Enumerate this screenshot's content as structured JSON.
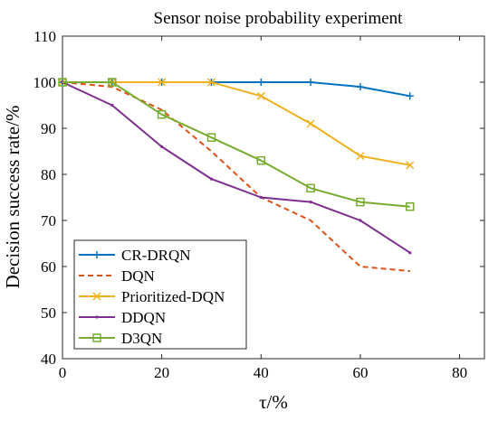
{
  "chart_data": {
    "type": "line",
    "title": "Sensor noise probability experiment",
    "xlabel": "τ/%",
    "ylabel": "Decision success rate/%",
    "xlim": [
      0,
      85
    ],
    "ylim": [
      40,
      110
    ],
    "xticks": [
      0,
      20,
      40,
      60,
      80
    ],
    "yticks": [
      40,
      50,
      60,
      70,
      80,
      90,
      100,
      110
    ],
    "grid": false,
    "legend_position": "bottom-left",
    "x": [
      0,
      10,
      20,
      30,
      40,
      50,
      60,
      70
    ],
    "series": [
      {
        "name": "CR-DRQN",
        "color": "#0072BD",
        "line": "solid",
        "marker": "plus",
        "values": [
          100,
          100,
          100,
          100,
          100,
          100,
          99,
          97
        ]
      },
      {
        "name": "DQN",
        "color": "#D95319",
        "line": "dashed",
        "marker": "none",
        "values": [
          100,
          99,
          94,
          85,
          75,
          70,
          60,
          59
        ]
      },
      {
        "name": "Prioritized-DQN",
        "color": "#EDB120",
        "line": "solid",
        "marker": "x",
        "values": [
          100,
          100,
          100,
          100,
          97,
          91,
          84,
          82
        ]
      },
      {
        "name": "DDQN",
        "color": "#7E2F8E",
        "line": "solid",
        "marker": "point",
        "values": [
          100,
          95,
          86,
          79,
          75,
          74,
          70,
          63
        ]
      },
      {
        "name": "D3QN",
        "color": "#77AC30",
        "line": "solid",
        "marker": "square",
        "values": [
          100,
          100,
          93,
          88,
          83,
          77,
          74,
          73
        ]
      }
    ]
  }
}
